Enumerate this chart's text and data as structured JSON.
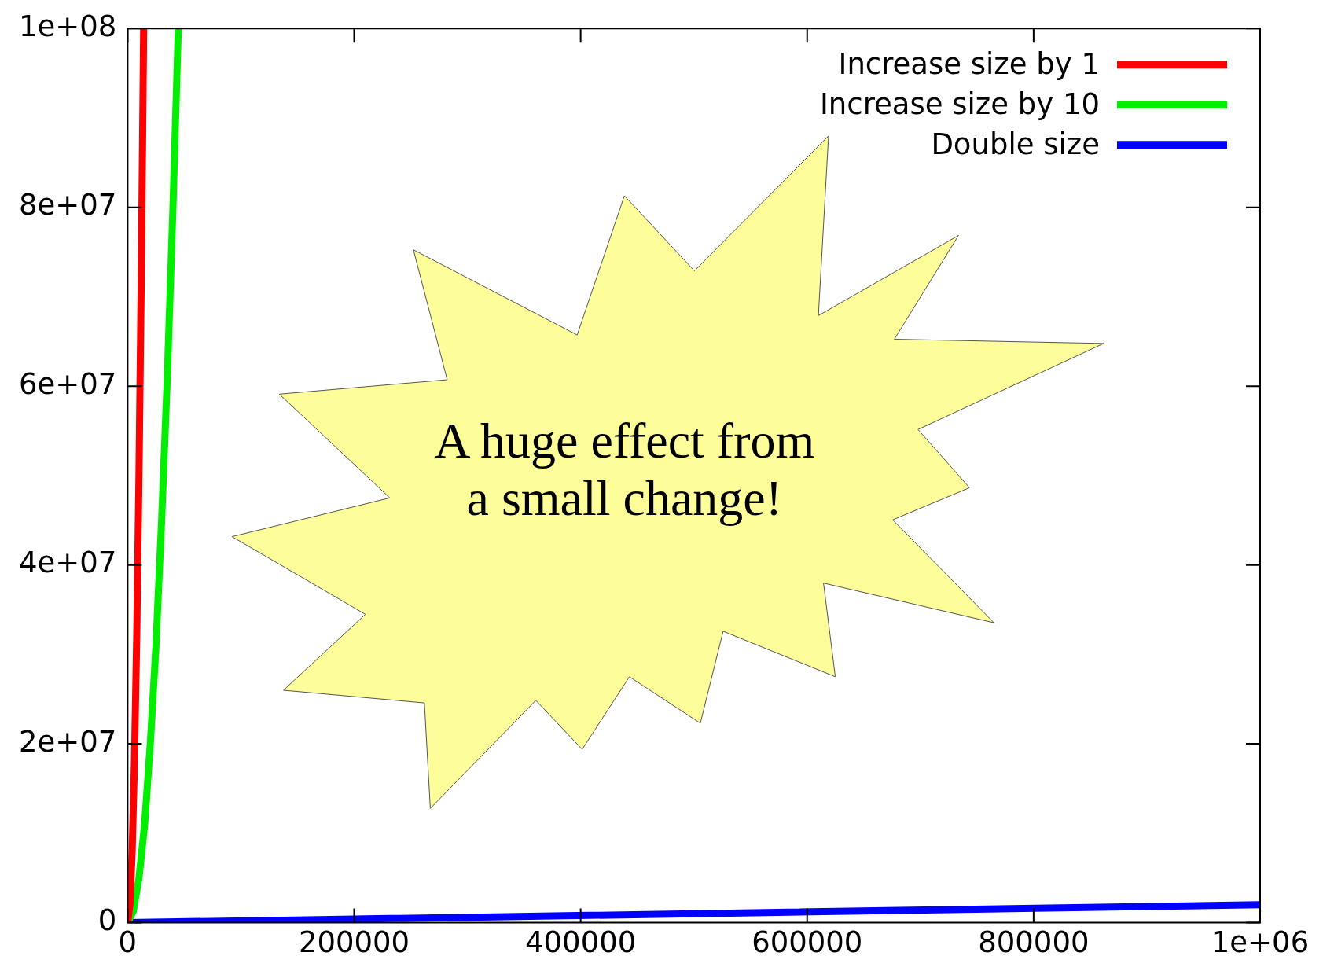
{
  "chart_data": {
    "type": "line",
    "annotations": [
      "A huge effect from\na small change!"
    ],
    "xlim": [
      0,
      1000000
    ],
    "ylim": [
      0,
      100000000
    ],
    "xticks": [
      0,
      200000,
      400000,
      600000,
      800000,
      {
        "value": 1000000,
        "label": "1e+06"
      }
    ],
    "yticks": [
      0,
      {
        "value": 20000000,
        "label": "2e+07"
      },
      {
        "value": 40000000,
        "label": "4e+07"
      },
      {
        "value": 60000000,
        "label": "6e+07"
      },
      {
        "value": 80000000,
        "label": "8e+07"
      },
      {
        "value": 100000000,
        "label": "1e+08"
      }
    ],
    "grid": false,
    "legend": "top right",
    "marker": "none",
    "line_style": "solid",
    "series": [
      {
        "name": "Increase size by 1",
        "color": "#ff0000",
        "x": [
          0,
          2000,
          4000,
          6000,
          8000,
          10000,
          12000,
          14142
        ],
        "values": [
          0,
          2000000,
          8000000,
          18000000,
          32000000,
          50000000,
          72000000,
          100000000
        ]
      },
      {
        "name": "Increase size by 10",
        "color": "#00ee00",
        "x": [
          0,
          5000,
          10000,
          15000,
          20000,
          25000,
          30000,
          35000,
          40000,
          44721
        ],
        "values": [
          0,
          1300000,
          5000000,
          11000000,
          20000000,
          31000000,
          45000000,
          61000000,
          80000000,
          100000000
        ]
      },
      {
        "name": "Double size",
        "color": "#0000ff",
        "x": [
          0,
          1000000
        ],
        "values": [
          0,
          2000000
        ]
      }
    ]
  }
}
